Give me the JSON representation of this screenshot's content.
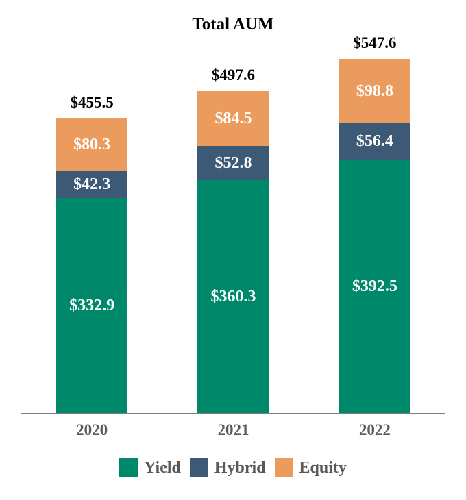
{
  "chart_data": {
    "type": "bar",
    "stacked": true,
    "title": "Total AUM",
    "categories": [
      "2020",
      "2021",
      "2022"
    ],
    "series": [
      {
        "name": "Yield",
        "color": "#00886B",
        "values": [
          332.9,
          360.3,
          392.5
        ],
        "labels": [
          "$332.9",
          "$360.3",
          "$392.5"
        ]
      },
      {
        "name": "Hybrid",
        "color": "#3C5A76",
        "values": [
          42.3,
          52.8,
          56.4
        ],
        "labels": [
          "$42.3",
          "$52.8",
          "$56.4"
        ]
      },
      {
        "name": "Equity",
        "color": "#EC9B5F",
        "values": [
          80.3,
          84.5,
          98.8
        ],
        "labels": [
          "$80.3",
          "$84.5",
          "$98.8"
        ]
      }
    ],
    "totals": [
      455.5,
      497.6,
      547.6
    ],
    "total_labels": [
      "$455.5",
      "$497.6",
      "$547.6"
    ],
    "value_prefix": "$",
    "xlabel": "",
    "ylabel": "",
    "ylim": [
      0,
      640
    ],
    "grid": false,
    "legend_position": "bottom",
    "colors": {
      "title_text": "#000000",
      "total_label_text": "#000000",
      "segment_label_text": "#FFFFFF",
      "tick_label_text": "#595959",
      "legend_text": "#595959",
      "axis_line": "#7F7F7F",
      "background": "#FFFFFF"
    }
  }
}
